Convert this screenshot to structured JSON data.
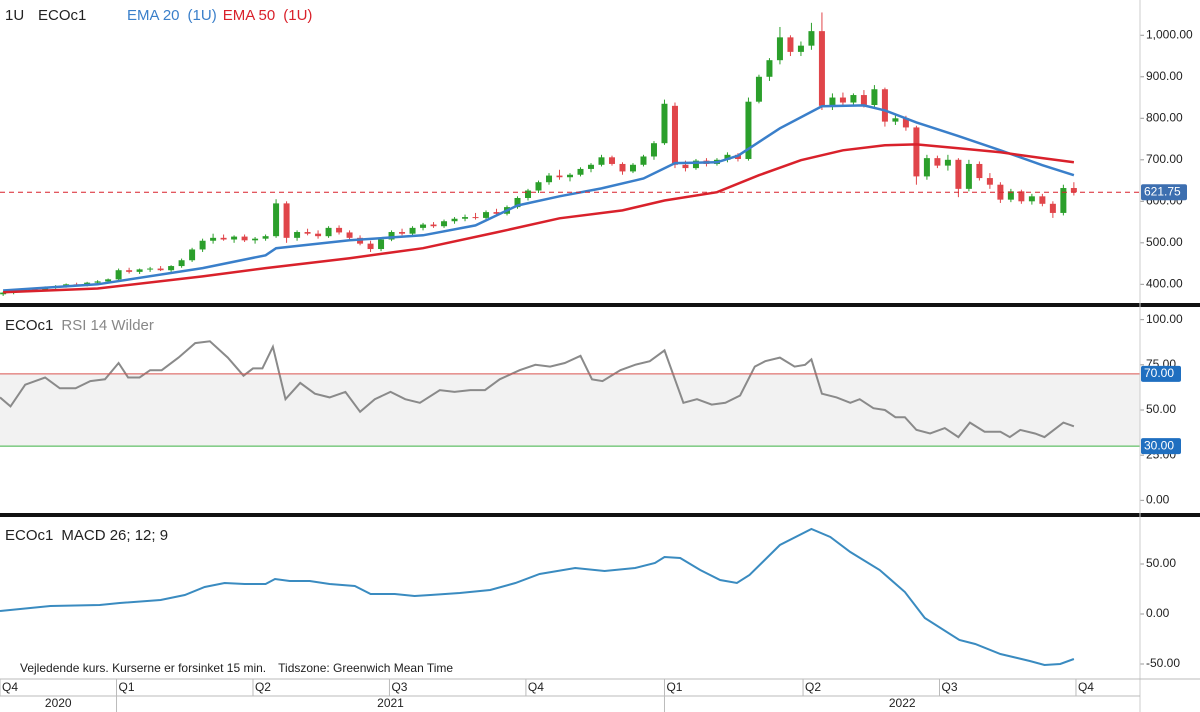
{
  "chart_data": [
    {
      "type": "candlestick",
      "interval": "1U",
      "symbol": "ECOc1",
      "up_color": "#2b9f2b",
      "down_color": "#e0454a",
      "ohlc": [
        [
          376,
          382,
          372,
          380
        ],
        [
          380,
          386,
          376,
          384
        ],
        [
          384,
          390,
          381,
          388
        ],
        [
          388,
          392,
          384,
          386
        ],
        [
          386,
          395,
          384,
          393
        ],
        [
          393,
          398,
          389,
          396
        ],
        [
          396,
          402,
          392,
          400
        ],
        [
          400,
          404,
          396,
          398
        ],
        [
          398,
          406,
          395,
          404
        ],
        [
          404,
          410,
          400,
          407
        ],
        [
          407,
          414,
          404,
          412
        ],
        [
          412,
          438,
          410,
          434
        ],
        [
          434,
          440,
          426,
          430
        ],
        [
          430,
          438,
          425,
          436
        ],
        [
          436,
          442,
          430,
          438
        ],
        [
          438,
          444,
          432,
          434
        ],
        [
          434,
          446,
          430,
          444
        ],
        [
          444,
          462,
          440,
          458
        ],
        [
          458,
          488,
          454,
          484
        ],
        [
          484,
          510,
          478,
          505
        ],
        [
          505,
          522,
          498,
          512
        ],
        [
          512,
          520,
          505,
          508
        ],
        [
          508,
          518,
          500,
          515
        ],
        [
          515,
          520,
          502,
          506
        ],
        [
          506,
          514,
          498,
          510
        ],
        [
          510,
          520,
          505,
          516
        ],
        [
          516,
          605,
          512,
          595
        ],
        [
          595,
          600,
          500,
          512
        ],
        [
          512,
          530,
          505,
          526
        ],
        [
          526,
          534,
          518,
          522
        ],
        [
          522,
          530,
          510,
          516
        ],
        [
          516,
          540,
          512,
          536
        ],
        [
          536,
          542,
          520,
          525
        ],
        [
          525,
          530,
          505,
          512
        ],
        [
          512,
          518,
          494,
          498
        ],
        [
          498,
          505,
          478,
          485
        ],
        [
          485,
          512,
          480,
          508
        ],
        [
          508,
          530,
          504,
          526
        ],
        [
          526,
          534,
          518,
          522
        ],
        [
          522,
          540,
          518,
          536
        ],
        [
          536,
          548,
          530,
          544
        ],
        [
          544,
          550,
          536,
          540
        ],
        [
          540,
          556,
          536,
          552
        ],
        [
          552,
          562,
          546,
          558
        ],
        [
          558,
          568,
          552,
          562
        ],
        [
          562,
          572,
          556,
          560
        ],
        [
          560,
          578,
          556,
          574
        ],
        [
          574,
          582,
          566,
          570
        ],
        [
          570,
          590,
          566,
          586
        ],
        [
          586,
          612,
          582,
          608
        ],
        [
          608,
          630,
          602,
          626
        ],
        [
          626,
          650,
          620,
          646
        ],
        [
          646,
          668,
          640,
          662
        ],
        [
          662,
          676,
          652,
          658
        ],
        [
          658,
          668,
          648,
          664
        ],
        [
          664,
          682,
          660,
          678
        ],
        [
          678,
          692,
          670,
          688
        ],
        [
          688,
          712,
          684,
          706
        ],
        [
          706,
          710,
          686,
          690
        ],
        [
          690,
          694,
          664,
          672
        ],
        [
          672,
          692,
          668,
          688
        ],
        [
          688,
          712,
          684,
          708
        ],
        [
          708,
          745,
          700,
          740
        ],
        [
          740,
          845,
          736,
          835
        ],
        [
          830,
          838,
          680,
          688
        ],
        [
          688,
          698,
          672,
          680
        ],
        [
          680,
          702,
          676,
          698
        ],
        [
          698,
          704,
          684,
          690
        ],
        [
          690,
          704,
          686,
          700
        ],
        [
          700,
          718,
          694,
          712
        ],
        [
          712,
          716,
          696,
          702
        ],
        [
          702,
          850,
          698,
          840
        ],
        [
          840,
          905,
          836,
          900
        ],
        [
          900,
          945,
          890,
          940
        ],
        [
          940,
          1020,
          930,
          995
        ],
        [
          995,
          1000,
          950,
          960
        ],
        [
          960,
          985,
          950,
          975
        ],
        [
          975,
          1030,
          965,
          1010
        ],
        [
          1010,
          1055,
          820,
          830
        ],
        [
          830,
          860,
          820,
          850
        ],
        [
          850,
          862,
          830,
          838
        ],
        [
          838,
          860,
          832,
          856
        ],
        [
          856,
          868,
          826,
          832
        ],
        [
          832,
          880,
          826,
          870
        ],
        [
          870,
          874,
          780,
          792
        ],
        [
          792,
          810,
          784,
          800
        ],
        [
          800,
          806,
          770,
          778
        ],
        [
          778,
          782,
          640,
          660
        ],
        [
          660,
          712,
          652,
          704
        ],
        [
          704,
          710,
          680,
          686
        ],
        [
          686,
          712,
          674,
          700
        ],
        [
          700,
          704,
          610,
          630
        ],
        [
          630,
          700,
          624,
          690
        ],
        [
          690,
          696,
          650,
          656
        ],
        [
          656,
          668,
          630,
          640
        ],
        [
          640,
          646,
          596,
          604
        ],
        [
          604,
          630,
          598,
          624
        ],
        [
          624,
          628,
          594,
          600
        ],
        [
          600,
          618,
          592,
          612
        ],
        [
          612,
          618,
          588,
          594
        ],
        [
          594,
          600,
          560,
          572
        ],
        [
          572,
          640,
          566,
          632
        ],
        [
          632,
          646,
          614,
          621.75
        ]
      ],
      "series": [
        {
          "name": "EMA 20",
          "period_label": "(1U)",
          "color": "#3a7fca",
          "x": [
            0,
            9,
            19,
            25,
            26,
            33,
            40,
            45,
            49,
            53,
            57,
            61,
            64,
            68,
            70,
            74,
            78,
            82,
            84,
            87,
            91,
            95,
            99,
            102
          ],
          "values": [
            385,
            400,
            439,
            470,
            487,
            506,
            518,
            542,
            590,
            612,
            631,
            655,
            692,
            694,
            710,
            776,
            829,
            831,
            819,
            790,
            757,
            723,
            687,
            663
          ]
        },
        {
          "name": "EMA 50",
          "period_label": "(1U)",
          "color": "#d9212b",
          "x": [
            0,
            9,
            19,
            25,
            33,
            40,
            47,
            53,
            59,
            63,
            68,
            72,
            76,
            80,
            84,
            87,
            91,
            95,
            99,
            102
          ],
          "values": [
            381,
            390,
            419,
            439,
            463,
            487,
            525,
            559,
            578,
            602,
            622,
            663,
            699,
            723,
            735,
            737,
            728,
            718,
            704,
            694
          ]
        }
      ],
      "last_price": 621.75,
      "last_price_color": "#d9212b",
      "last_price_box": "#3d6fb0",
      "ylim": [
        355,
        1085
      ],
      "yticks": [
        {
          "value": 400,
          "label": "400.00"
        },
        {
          "value": 500,
          "label": "500.00"
        },
        {
          "value": 600,
          "label": "600.00"
        },
        {
          "value": 700,
          "label": "700.00"
        },
        {
          "value": 800,
          "label": "800.00"
        },
        {
          "value": 900,
          "label": "900.00"
        },
        {
          "value": 1000,
          "label": "1,000.00"
        }
      ]
    },
    {
      "type": "line",
      "symbol": "ECOc1",
      "title": "RSI 14 Wilder",
      "band_fill": "#f2f2f2",
      "band_box": "#1f6fc0",
      "bands": [
        {
          "value": 70,
          "label": "70.00",
          "color": "#d9534f"
        },
        {
          "value": 30,
          "label": "30.00",
          "color": "#3cb043"
        }
      ],
      "series": [
        {
          "color": "#8a8a8a",
          "x": [
            -0.3,
            0.7,
            2.1,
            4,
            5.4,
            6.9,
            8.3,
            9.7,
            11,
            11.9,
            13,
            14,
            15.1,
            16.7,
            18.3,
            19.7,
            21.4,
            22.9,
            23.8,
            24.7,
            25.7,
            26.9,
            28.3,
            29.7,
            31.1,
            32.6,
            34,
            35.4,
            36.9,
            38.3,
            39.7,
            41.6,
            43,
            44.5,
            45.9,
            47.3,
            49.2,
            50.7,
            52.1,
            53.5,
            55,
            56.1,
            57.1,
            58.8,
            60.2,
            61.6,
            63,
            64.8,
            66.1,
            67.5,
            68.8,
            70.2,
            71.6,
            72.6,
            74,
            75.4,
            76.4,
            77,
            78,
            79.4,
            80.7,
            81.6,
            82.9,
            84,
            85,
            85.9,
            87,
            88.3,
            89.7,
            91,
            92.1,
            93.5,
            95,
            95.9,
            96.9,
            98.3,
            99.2,
            101,
            102
          ],
          "values": [
            57,
            52,
            64,
            68,
            62,
            62,
            66,
            67,
            76,
            68,
            68,
            72,
            72,
            79,
            87,
            88,
            79,
            69,
            73,
            73,
            85,
            56,
            65,
            59,
            57,
            60,
            49,
            56,
            60,
            56,
            54,
            61,
            60,
            61,
            61,
            67,
            72,
            75,
            74,
            76,
            80,
            67,
            66,
            72,
            75,
            77,
            83,
            54,
            56,
            53,
            54,
            58,
            74,
            77,
            79,
            74,
            75,
            78,
            59,
            57,
            54,
            56,
            51,
            50,
            46,
            46,
            39,
            37,
            40,
            35,
            43,
            38,
            38,
            35,
            39,
            37,
            35,
            43,
            41
          ]
        }
      ],
      "ylim": [
        -7,
        107
      ],
      "yticks": [
        {
          "value": 0,
          "label": "0.00"
        },
        {
          "value": 25,
          "label": "25.00"
        },
        {
          "value": 50,
          "label": "50.00"
        },
        {
          "value": 75,
          "label": "75.00"
        },
        {
          "value": 100,
          "label": "100.00"
        }
      ]
    },
    {
      "type": "line",
      "symbol": "ECOc1",
      "title": "MACD 26; 12; 9",
      "series": [
        {
          "color": "#3a8bc0",
          "x": [
            -0.3,
            4.5,
            9.2,
            11.1,
            15,
            17.3,
            19.2,
            21.1,
            23,
            25,
            25.9,
            27.3,
            29.2,
            31.1,
            33.5,
            35,
            37.3,
            39.2,
            40.7,
            43.5,
            46.4,
            48.8,
            51.1,
            54.5,
            57.3,
            60.2,
            62.1,
            63,
            64.5,
            66.4,
            68.3,
            69.9,
            71.1,
            74,
            77,
            78.8,
            80.7,
            83.5,
            85.9,
            87.8,
            91.1,
            92.6,
            95,
            97.8,
            99.2,
            100.7,
            102
          ],
          "values": [
            3,
            8,
            9,
            11,
            14,
            19,
            27,
            31,
            30,
            30,
            35,
            33,
            33,
            30,
            28,
            20,
            20,
            18,
            19,
            21,
            24,
            31,
            40,
            46,
            43,
            46,
            51,
            57,
            56,
            44,
            34,
            31,
            39,
            69,
            85,
            77,
            62,
            44,
            22,
            -4,
            -26,
            -30,
            -40,
            -47,
            -51,
            -50,
            -45
          ]
        }
      ],
      "ylim": [
        -65,
        97
      ],
      "yticks": [
        {
          "value": -50,
          "label": "-50.00"
        },
        {
          "value": 0,
          "label": "0.00"
        },
        {
          "value": 50,
          "label": "50.00"
        }
      ]
    }
  ],
  "x_axis": {
    "xlim": [
      -0.3,
      108.3
    ],
    "xticks": [
      {
        "value": -0.3,
        "label": "Q4"
      },
      {
        "value": 10.8,
        "label": "Q1"
      },
      {
        "value": 23.8,
        "label": "Q2"
      },
      {
        "value": 36.8,
        "label": "Q3"
      },
      {
        "value": 49.8,
        "label": "Q4"
      },
      {
        "value": 63,
        "label": "Q1"
      },
      {
        "value": 76.2,
        "label": "Q2"
      },
      {
        "value": 89.2,
        "label": "Q3"
      },
      {
        "value": 102.2,
        "label": "Q4"
      }
    ],
    "years": [
      "2020",
      "2021",
      "2022"
    ]
  },
  "footer": {
    "note": "Vejledende kurs. Kurserne er forsinket 15 min.",
    "timezone": "Tidszone: Greenwich Mean Time"
  }
}
